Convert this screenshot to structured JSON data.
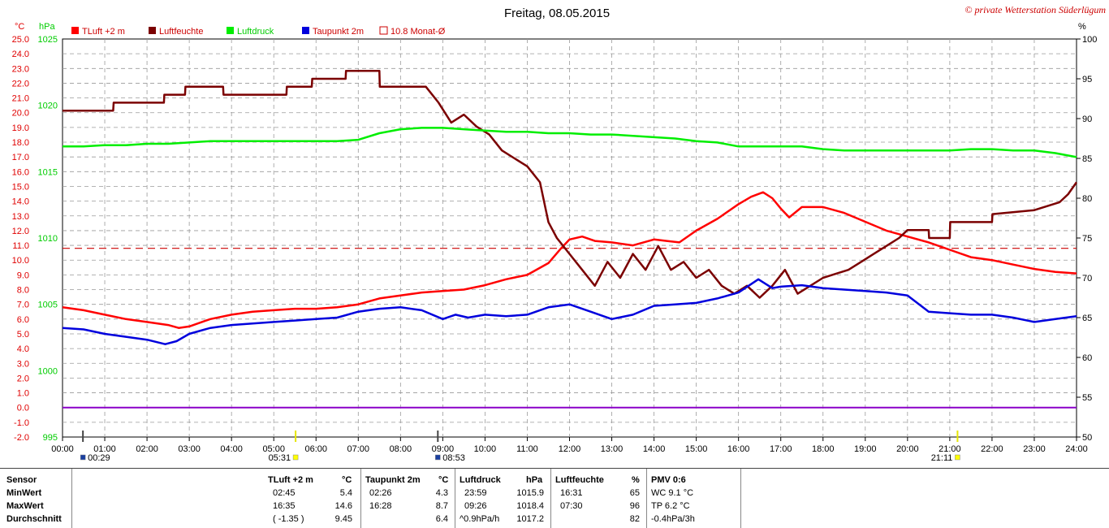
{
  "header": {
    "title": "Freitag, 08.05.2015",
    "copyright": "© private Wetterstation Süderlügum"
  },
  "legend": {
    "temp": "TLuft +2 m",
    "humidity": "Luftfeuchte",
    "pressure": "Luftdruck",
    "dewpoint": "Taupunkt 2m",
    "month_avg": "10.8 Monat-Ø"
  },
  "colors": {
    "temp": "#ff0000",
    "humidity": "#7b0000",
    "pressure": "#00ee00",
    "dewpoint": "#0000dd",
    "zero_line": "#8a00c8",
    "month_avg": "#cc0000"
  },
  "axis_units": {
    "left_temp": "°C",
    "left_pressure": "hPa",
    "right": "%"
  },
  "markers": {
    "m1": "00:29",
    "m2": "05:31",
    "m3": "08:53",
    "m4": "21:11"
  },
  "chart_data": {
    "type": "line",
    "xlim": [
      0,
      24
    ],
    "x_ticks": [
      "00:00",
      "01:00",
      "02:00",
      "03:00",
      "04:00",
      "05:00",
      "06:00",
      "07:00",
      "08:00",
      "09:00",
      "10:00",
      "11:00",
      "12:00",
      "13:00",
      "14:00",
      "15:00",
      "16:00",
      "17:00",
      "18:00",
      "19:00",
      "20:00",
      "21:00",
      "22:00",
      "23:00",
      "24:00"
    ],
    "y_temp": {
      "lim": [
        -2,
        25
      ],
      "ticks": [
        "25.0",
        "24.0",
        "23.0",
        "22.0",
        "21.0",
        "20.0",
        "19.0",
        "18.0",
        "17.0",
        "16.0",
        "15.0",
        "14.0",
        "13.0",
        "12.0",
        "11.0",
        "10.0",
        "9.0",
        "8.0",
        "7.0",
        "6.0",
        "5.0",
        "4.0",
        "3.0",
        "2.0",
        "1.0",
        "0.0",
        "-1.0",
        "-2.0"
      ]
    },
    "y_pressure": {
      "lim": [
        995,
        1025
      ],
      "ticks": [
        "1025",
        "1020",
        "1015",
        "1010",
        "1005",
        "1000",
        "995"
      ]
    },
    "y_humidity": {
      "lim": [
        50,
        100
      ],
      "ticks": [
        "100",
        "95",
        "90",
        "85",
        "80",
        "75",
        "70",
        "65",
        "60",
        "55",
        "50"
      ]
    },
    "month_avg_temp": 10.8,
    "zero_line": 0.0,
    "series": [
      {
        "name": "TLuft +2 m",
        "axis": "temp",
        "x": [
          0,
          0.5,
          1,
          1.5,
          2,
          2.5,
          2.75,
          3,
          3.5,
          4,
          4.5,
          5,
          5.5,
          6,
          6.5,
          7,
          7.5,
          8,
          8.5,
          9,
          9.5,
          10,
          10.5,
          11,
          11.5,
          11.8,
          12,
          12.3,
          12.6,
          13,
          13.5,
          14,
          14.3,
          14.6,
          15,
          15.5,
          16,
          16.3,
          16.58,
          16.8,
          17,
          17.2,
          17.5,
          18,
          18.5,
          19,
          19.5,
          20,
          20.5,
          21,
          21.5,
          22,
          22.5,
          23,
          23.5,
          24
        ],
        "y": [
          6.8,
          6.6,
          6.3,
          6.0,
          5.8,
          5.6,
          5.4,
          5.5,
          6.0,
          6.3,
          6.5,
          6.6,
          6.7,
          6.7,
          6.8,
          7.0,
          7.4,
          7.6,
          7.8,
          7.9,
          8.0,
          8.3,
          8.7,
          9.0,
          9.8,
          10.8,
          11.4,
          11.6,
          11.3,
          11.2,
          11.0,
          11.4,
          11.3,
          11.2,
          12.0,
          12.8,
          13.8,
          14.3,
          14.6,
          14.2,
          13.5,
          12.9,
          13.6,
          13.6,
          13.2,
          12.6,
          12.0,
          11.6,
          11.2,
          10.7,
          10.2,
          10.0,
          9.7,
          9.4,
          9.2,
          9.1
        ]
      },
      {
        "name": "Luftfeuchte",
        "axis": "humidity",
        "x": [
          0,
          1.2,
          1.21,
          2.4,
          2.41,
          2.9,
          2.91,
          3.8,
          3.81,
          5.3,
          5.31,
          5.9,
          5.91,
          6.7,
          6.71,
          7.5,
          7.51,
          8.6,
          8.9,
          9.2,
          9.5,
          9.8,
          10.1,
          10.4,
          10.7,
          11.0,
          11.3,
          11.5,
          11.7,
          12.0,
          12.3,
          12.6,
          12.9,
          13.2,
          13.5,
          13.8,
          14.1,
          14.4,
          14.7,
          15.0,
          15.3,
          15.6,
          15.9,
          16.2,
          16.5,
          16.8,
          17.1,
          17.4,
          17.7,
          18.0,
          18.3,
          18.6,
          18.9,
          19.2,
          19.5,
          19.8,
          20.0,
          20.5,
          20.51,
          21.0,
          21.01,
          22.0,
          22.01,
          23.0,
          23.3,
          23.6,
          23.8,
          24.0
        ],
        "y": [
          91,
          91,
          92,
          92,
          93,
          93,
          94,
          94,
          93,
          93,
          94,
          94,
          95,
          95,
          96,
          96,
          94,
          94,
          92,
          89.5,
          90.5,
          89,
          88,
          86,
          85,
          84,
          82,
          77,
          75,
          73,
          71,
          69,
          72,
          70,
          73,
          71,
          74,
          71,
          72,
          70,
          71,
          69,
          68,
          69,
          67.5,
          69,
          71,
          68,
          69,
          70,
          70.5,
          71,
          72,
          73,
          74,
          75,
          76,
          76,
          75,
          75,
          77,
          77,
          78,
          78.5,
          79,
          79.5,
          80.5,
          82
        ]
      },
      {
        "name": "Luftdruck",
        "axis": "pressure",
        "x": [
          0,
          0.5,
          1,
          1.5,
          2,
          2.5,
          3,
          3.5,
          4,
          4.5,
          5,
          5.5,
          6,
          6.5,
          7,
          7.5,
          8,
          8.5,
          9,
          9.5,
          10,
          10.5,
          11,
          11.5,
          12,
          12.5,
          13,
          13.5,
          14,
          14.5,
          15,
          15.5,
          16,
          16.5,
          17,
          17.5,
          18,
          18.5,
          19,
          19.5,
          20,
          20.5,
          21,
          21.5,
          22,
          22.5,
          23,
          23.5,
          24
        ],
        "y": [
          1016.9,
          1016.9,
          1017.0,
          1017.0,
          1017.1,
          1017.1,
          1017.2,
          1017.3,
          1017.3,
          1017.3,
          1017.3,
          1017.3,
          1017.3,
          1017.3,
          1017.4,
          1017.9,
          1018.2,
          1018.3,
          1018.3,
          1018.2,
          1018.1,
          1018.0,
          1018.0,
          1017.9,
          1017.9,
          1017.8,
          1017.8,
          1017.7,
          1017.6,
          1017.5,
          1017.3,
          1017.2,
          1016.9,
          1016.9,
          1016.9,
          1016.9,
          1016.7,
          1016.6,
          1016.6,
          1016.6,
          1016.6,
          1016.6,
          1016.6,
          1016.7,
          1016.7,
          1016.6,
          1016.6,
          1016.4,
          1016.1
        ]
      },
      {
        "name": "Taupunkt 2m",
        "axis": "temp",
        "x": [
          0,
          0.5,
          1,
          1.5,
          2,
          2.43,
          2.7,
          3,
          3.5,
          4,
          4.5,
          5,
          5.5,
          6,
          6.5,
          7,
          7.5,
          8,
          8.5,
          9,
          9.3,
          9.6,
          10,
          10.5,
          11,
          11.5,
          12,
          12.5,
          13,
          13.5,
          14,
          14.5,
          15,
          15.5,
          16,
          16.47,
          16.8,
          17,
          17.5,
          18,
          18.5,
          19,
          19.5,
          20,
          20.5,
          21,
          21.5,
          22,
          22.5,
          23,
          23.5,
          24
        ],
        "y": [
          5.4,
          5.3,
          5.0,
          4.8,
          4.6,
          4.3,
          4.5,
          5.0,
          5.4,
          5.6,
          5.7,
          5.8,
          5.9,
          6.0,
          6.1,
          6.5,
          6.7,
          6.8,
          6.6,
          6.0,
          6.3,
          6.1,
          6.3,
          6.2,
          6.3,
          6.8,
          7.0,
          6.5,
          6.0,
          6.3,
          6.9,
          7.0,
          7.1,
          7.4,
          7.8,
          8.7,
          8.1,
          8.2,
          8.3,
          8.1,
          8.0,
          7.9,
          7.8,
          7.6,
          6.5,
          6.4,
          6.3,
          6.3,
          6.1,
          5.8,
          6.0,
          6.2
        ]
      }
    ]
  },
  "stats": {
    "head": {
      "sensor": "Sensor",
      "temp": "TLuft +2 m",
      "temp_unit": "°C",
      "dew": "Taupunkt 2m",
      "dew_unit": "°C",
      "press": "Luftdruck",
      "press_unit": "hPa",
      "hum": "Luftfeuchte",
      "hum_unit": "%",
      "pmv": "PMV 0:6"
    },
    "rows": [
      {
        "label": "MinWert",
        "t_time": "02:45",
        "t_val": "5.4",
        "d_time": "02:26",
        "d_val": "4.3",
        "p_time": "23:59",
        "p_val": "1015.9",
        "h_time": "16:31",
        "h_val": "65",
        "pmv": "WC 9.1 °C"
      },
      {
        "label": "MaxWert",
        "t_time": "16:35",
        "t_val": "14.6",
        "d_time": "16:28",
        "d_val": "8.7",
        "p_time": "09:26",
        "p_val": "1018.4",
        "h_time": "07:30",
        "h_val": "96",
        "pmv": "TP 6.2 °C"
      },
      {
        "label": "Durchschnitt",
        "t_time": "( -1.35 )",
        "t_val": "9.45",
        "d_time": "",
        "d_val": "6.4",
        "p_time": "^0.9hPa/h",
        "p_val": "1017.2",
        "h_time": "",
        "h_val": "82",
        "pmv": "-0.4hPa/3h"
      }
    ]
  }
}
